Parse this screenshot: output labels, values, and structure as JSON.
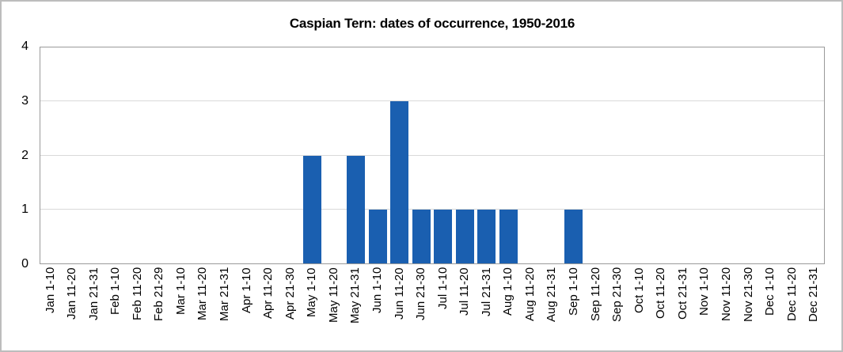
{
  "chart_data": {
    "type": "bar",
    "title": "Caspian Tern: dates of occurrence, 1950-2016",
    "xlabel": "",
    "ylabel": "",
    "categories": [
      "Jan 1-10",
      "Jan 11-20",
      "Jan 21-31",
      "Feb 1-10",
      "Feb 11-20",
      "Feb 21-29",
      "Mar 1-10",
      "Mar 11-20",
      "Mar 21-31",
      "Apr 1-10",
      "Apr 11-20",
      "Apr 21-30",
      "May 1-10",
      "May 11-20",
      "May 21-31",
      "Jun 1-10",
      "Jun 11-20",
      "Jun 21-30",
      "Jul 1-10",
      "Jul 11-20",
      "Jul 21-31",
      "Aug 1-10",
      "Aug 11-20",
      "Aug 21-31",
      "Sep 1-10",
      "Sep 11-20",
      "Sep 21-30",
      "Oct 1-10",
      "Oct 11-20",
      "Oct 21-31",
      "Nov 1-10",
      "Nov 11-20",
      "Nov 21-30",
      "Dec 1-10",
      "Dec 11-20",
      "Dec 21-31"
    ],
    "values": [
      0,
      0,
      0,
      0,
      0,
      0,
      0,
      0,
      0,
      0,
      0,
      0,
      2,
      0,
      2,
      1,
      3,
      1,
      1,
      1,
      1,
      1,
      0,
      0,
      1,
      0,
      0,
      0,
      0,
      0,
      0,
      0,
      0,
      0,
      0,
      0
    ],
    "ylim": [
      0,
      4
    ],
    "yticks": [
      0,
      1,
      2,
      3,
      4
    ],
    "grid": "horizontal",
    "legend": "none",
    "bar_color": "#1a5fb0",
    "gridline_color": "#d9d9d9",
    "plot_border_color": "#9a9a9a",
    "frame_border_color": "#bdbdbd",
    "text_color": "#000000",
    "background_color": "#ffffff"
  }
}
